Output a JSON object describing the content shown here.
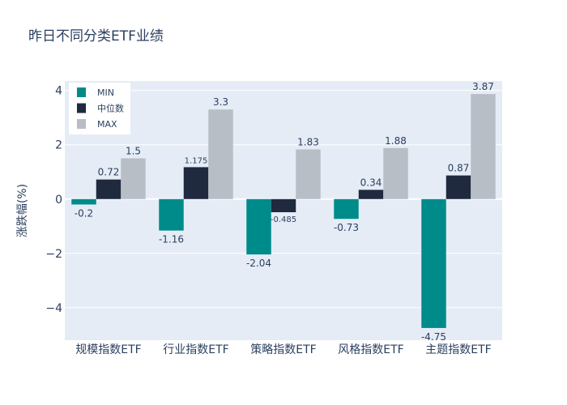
{
  "chart_data": {
    "type": "bar",
    "title": "昨日不同分类ETF业绩",
    "ylabel": "涨跌幅(%)",
    "xlabel": "",
    "categories": [
      "规模指数ETF",
      "行业指数ETF",
      "策略指数ETF",
      "风格指数ETF",
      "主题指数ETF"
    ],
    "series": [
      {
        "name": "MIN",
        "color": "#008b8b",
        "values": [
          -0.2,
          -1.16,
          -2.04,
          -0.73,
          -4.75
        ],
        "labels": [
          "-0.2",
          "-1.16",
          "-2.04",
          "-0.73",
          "-4.75"
        ]
      },
      {
        "name": "中位数",
        "color": "#1f2a3f",
        "values": [
          0.72,
          1.175,
          -0.485,
          0.34,
          0.87
        ],
        "labels": [
          "0.72",
          "1.175",
          "-0.485",
          "0.34",
          "0.87"
        ]
      },
      {
        "name": "MAX",
        "color": "#b8bec6",
        "values": [
          1.5,
          3.3,
          1.83,
          1.88,
          3.87
        ],
        "labels": [
          "1.5",
          "3.3",
          "1.83",
          "1.88",
          "3.87"
        ]
      }
    ],
    "ylim": [
      -5.2,
      4.35
    ],
    "yticks": [
      -4,
      -2,
      0,
      2,
      4
    ],
    "ytick_labels": [
      "−4",
      "−2",
      "0",
      "2",
      "4"
    ],
    "grid": true,
    "legend_position": "top-left",
    "colors": {
      "plot_bg": "#e5ecf6",
      "grid": "#ffffff",
      "text": "#2a3f5f"
    }
  }
}
